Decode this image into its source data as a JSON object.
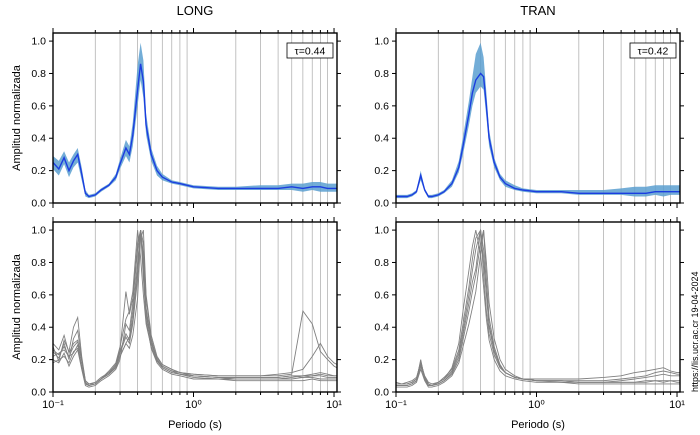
{
  "side_note": "https://lis.ucr.ac.cr 19-04-2024",
  "chart_data": [
    {
      "type": "line",
      "title": "LONG",
      "xlabel": "",
      "ylabel": "Amplitud normalizada",
      "xscale": "log",
      "xlim": [
        0.1,
        10.5
      ],
      "ylim": [
        0,
        1.05
      ],
      "yticks": [
        "0.0",
        "0.2",
        "0.4",
        "0.6",
        "0.8",
        "1.0"
      ],
      "annotation": "τ=0.44",
      "legend": "none",
      "grid": "vertical",
      "x": [
        0.1,
        0.11,
        0.12,
        0.13,
        0.14,
        0.15,
        0.16,
        0.17,
        0.18,
        0.2,
        0.22,
        0.25,
        0.28,
        0.3,
        0.33,
        0.35,
        0.37,
        0.4,
        0.42,
        0.44,
        0.46,
        0.5,
        0.55,
        0.6,
        0.7,
        0.8,
        1.0,
        1.5,
        2,
        3,
        4,
        5,
        6,
        7,
        8,
        9,
        10,
        10.5
      ],
      "series": [
        {
          "values": [
            0.25,
            0.21,
            0.28,
            0.2,
            0.26,
            0.3,
            0.18,
            0.06,
            0.04,
            0.05,
            0.08,
            0.11,
            0.16,
            0.24,
            0.34,
            0.3,
            0.42,
            0.7,
            0.86,
            0.75,
            0.48,
            0.3,
            0.2,
            0.16,
            0.13,
            0.12,
            0.1,
            0.09,
            0.09,
            0.09,
            0.09,
            0.1,
            0.09,
            0.1,
            0.1,
            0.09,
            0.09,
            0.09
          ],
          "lower": [
            0.21,
            0.17,
            0.24,
            0.16,
            0.22,
            0.25,
            0.14,
            0.04,
            0.03,
            0.04,
            0.07,
            0.1,
            0.14,
            0.21,
            0.29,
            0.25,
            0.35,
            0.6,
            0.76,
            0.65,
            0.42,
            0.26,
            0.17,
            0.14,
            0.12,
            0.11,
            0.09,
            0.08,
            0.08,
            0.08,
            0.08,
            0.08,
            0.07,
            0.08,
            0.07,
            0.07,
            0.07,
            0.07
          ],
          "upper": [
            0.29,
            0.26,
            0.32,
            0.25,
            0.3,
            0.34,
            0.22,
            0.08,
            0.05,
            0.06,
            0.09,
            0.12,
            0.18,
            0.27,
            0.39,
            0.35,
            0.5,
            0.85,
            0.99,
            0.88,
            0.55,
            0.34,
            0.23,
            0.18,
            0.14,
            0.13,
            0.11,
            0.1,
            0.1,
            0.11,
            0.11,
            0.12,
            0.12,
            0.13,
            0.13,
            0.12,
            0.12,
            0.12
          ]
        }
      ]
    },
    {
      "type": "line",
      "title": "TRAN",
      "xlabel": "",
      "ylabel": "",
      "xscale": "log",
      "xlim": [
        0.1,
        10.5
      ],
      "ylim": [
        0,
        1.05
      ],
      "yticks": [
        "0.0",
        "0.2",
        "0.4",
        "0.6",
        "0.8",
        "1.0"
      ],
      "annotation": "τ=0.42",
      "legend": "none",
      "grid": "vertical",
      "x": [
        0.1,
        0.11,
        0.12,
        0.13,
        0.14,
        0.15,
        0.16,
        0.17,
        0.18,
        0.2,
        0.22,
        0.25,
        0.28,
        0.3,
        0.33,
        0.35,
        0.37,
        0.4,
        0.42,
        0.44,
        0.46,
        0.5,
        0.55,
        0.6,
        0.7,
        0.8,
        1.0,
        1.5,
        2,
        3,
        4,
        5,
        6,
        7,
        8,
        9,
        10,
        10.5
      ],
      "series": [
        {
          "values": [
            0.04,
            0.04,
            0.04,
            0.05,
            0.07,
            0.17,
            0.08,
            0.04,
            0.04,
            0.05,
            0.07,
            0.12,
            0.22,
            0.35,
            0.55,
            0.68,
            0.76,
            0.8,
            0.78,
            0.6,
            0.4,
            0.25,
            0.16,
            0.12,
            0.09,
            0.08,
            0.07,
            0.07,
            0.06,
            0.06,
            0.06,
            0.06,
            0.06,
            0.07,
            0.07,
            0.07,
            0.07,
            0.07
          ],
          "lower": [
            0.03,
            0.03,
            0.03,
            0.04,
            0.06,
            0.14,
            0.07,
            0.03,
            0.03,
            0.04,
            0.06,
            0.1,
            0.19,
            0.3,
            0.48,
            0.6,
            0.68,
            0.72,
            0.7,
            0.53,
            0.35,
            0.22,
            0.14,
            0.1,
            0.08,
            0.07,
            0.06,
            0.06,
            0.05,
            0.05,
            0.05,
            0.04,
            0.04,
            0.05,
            0.04,
            0.05,
            0.05,
            0.05
          ],
          "upper": [
            0.05,
            0.05,
            0.05,
            0.06,
            0.08,
            0.2,
            0.09,
            0.05,
            0.05,
            0.06,
            0.08,
            0.14,
            0.26,
            0.41,
            0.63,
            0.78,
            0.92,
            0.99,
            0.9,
            0.68,
            0.45,
            0.28,
            0.18,
            0.14,
            0.11,
            0.09,
            0.08,
            0.08,
            0.08,
            0.08,
            0.09,
            0.1,
            0.1,
            0.11,
            0.11,
            0.11,
            0.11,
            0.11
          ]
        }
      ]
    },
    {
      "type": "line",
      "title": "",
      "xlabel": "Periodo (s)",
      "ylabel": "Amplitud normalizada",
      "xscale": "log",
      "xlim": [
        0.1,
        10.5
      ],
      "ylim": [
        0,
        1.05
      ],
      "xticks": [
        "10⁻¹",
        "10⁰",
        "10¹"
      ],
      "yticks": [
        "0.0",
        "0.2",
        "0.4",
        "0.6",
        "0.8",
        "1.0"
      ],
      "legend": "none",
      "grid": "vertical",
      "x": [
        0.1,
        0.11,
        0.12,
        0.13,
        0.14,
        0.15,
        0.16,
        0.17,
        0.18,
        0.2,
        0.22,
        0.25,
        0.28,
        0.3,
        0.33,
        0.35,
        0.37,
        0.4,
        0.42,
        0.44,
        0.46,
        0.5,
        0.55,
        0.6,
        0.7,
        0.8,
        1.0,
        1.5,
        2,
        3,
        4,
        5,
        6,
        7,
        8,
        9,
        10,
        10.5
      ],
      "series": [
        {
          "values": [
            0.25,
            0.21,
            0.3,
            0.2,
            0.33,
            0.38,
            0.2,
            0.06,
            0.04,
            0.05,
            0.08,
            0.11,
            0.16,
            0.24,
            0.34,
            0.3,
            0.42,
            0.7,
            1.0,
            0.75,
            0.48,
            0.3,
            0.2,
            0.16,
            0.13,
            0.12,
            0.1,
            0.09,
            0.09,
            0.09,
            0.09,
            0.1,
            0.09,
            0.1,
            0.1,
            0.09,
            0.09,
            0.09
          ]
        },
        {
          "values": [
            0.22,
            0.24,
            0.26,
            0.22,
            0.24,
            0.29,
            0.16,
            0.05,
            0.04,
            0.05,
            0.08,
            0.13,
            0.18,
            0.28,
            0.45,
            0.5,
            0.62,
            1.0,
            0.83,
            0.6,
            0.42,
            0.28,
            0.19,
            0.15,
            0.12,
            0.11,
            0.1,
            0.09,
            0.08,
            0.08,
            0.08,
            0.09,
            0.1,
            0.1,
            0.11,
            0.1,
            0.1,
            0.1
          ]
        },
        {
          "values": [
            0.28,
            0.19,
            0.32,
            0.25,
            0.4,
            0.46,
            0.22,
            0.07,
            0.05,
            0.06,
            0.09,
            0.12,
            0.15,
            0.22,
            0.3,
            0.27,
            0.35,
            0.58,
            0.95,
            1.0,
            0.6,
            0.35,
            0.22,
            0.17,
            0.14,
            0.12,
            0.11,
            0.1,
            0.1,
            0.1,
            0.11,
            0.12,
            0.14,
            0.22,
            0.3,
            0.22,
            0.18,
            0.17
          ]
        },
        {
          "values": [
            0.2,
            0.18,
            0.24,
            0.16,
            0.22,
            0.26,
            0.14,
            0.04,
            0.03,
            0.04,
            0.07,
            0.1,
            0.14,
            0.2,
            0.42,
            0.38,
            0.55,
            0.88,
            1.0,
            0.7,
            0.45,
            0.27,
            0.18,
            0.14,
            0.11,
            0.1,
            0.08,
            0.08,
            0.07,
            0.07,
            0.07,
            0.07,
            0.07,
            0.08,
            0.07,
            0.07,
            0.07,
            0.07
          ]
        },
        {
          "values": [
            0.3,
            0.26,
            0.35,
            0.24,
            0.3,
            0.32,
            0.2,
            0.07,
            0.05,
            0.05,
            0.08,
            0.12,
            0.17,
            0.26,
            0.62,
            0.48,
            0.58,
            0.92,
            1.0,
            0.85,
            0.52,
            0.31,
            0.21,
            0.17,
            0.14,
            0.12,
            0.11,
            0.1,
            0.1,
            0.1,
            0.1,
            0.11,
            0.5,
            0.42,
            0.25,
            0.2,
            0.16,
            0.15
          ]
        },
        {
          "values": [
            0.18,
            0.2,
            0.22,
            0.18,
            0.25,
            0.27,
            0.15,
            0.05,
            0.04,
            0.05,
            0.08,
            0.11,
            0.15,
            0.22,
            0.3,
            0.34,
            0.5,
            0.8,
            1.0,
            0.92,
            0.58,
            0.33,
            0.2,
            0.15,
            0.12,
            0.11,
            0.09,
            0.08,
            0.08,
            0.08,
            0.08,
            0.08,
            0.09,
            0.09,
            0.08,
            0.08,
            0.08,
            0.08
          ]
        },
        {
          "values": [
            0.26,
            0.23,
            0.28,
            0.22,
            0.28,
            0.31,
            0.19,
            0.06,
            0.04,
            0.05,
            0.08,
            0.12,
            0.17,
            0.25,
            0.36,
            0.32,
            0.45,
            0.75,
            1.0,
            0.8,
            0.5,
            0.3,
            0.2,
            0.16,
            0.13,
            0.11,
            0.1,
            0.09,
            0.09,
            0.09,
            0.09,
            0.1,
            0.1,
            0.11,
            0.12,
            0.11,
            0.1,
            0.1
          ]
        }
      ]
    },
    {
      "type": "line",
      "title": "",
      "xlabel": "Periodo (s)",
      "ylabel": "",
      "xscale": "log",
      "xlim": [
        0.1,
        10.5
      ],
      "ylim": [
        0,
        1.05
      ],
      "xticks": [
        "10⁻¹",
        "10⁰",
        "10¹"
      ],
      "yticks": [
        "0.0",
        "0.2",
        "0.4",
        "0.6",
        "0.8",
        "1.0"
      ],
      "legend": "none",
      "grid": "vertical",
      "x": [
        0.1,
        0.11,
        0.12,
        0.13,
        0.14,
        0.15,
        0.16,
        0.17,
        0.18,
        0.2,
        0.22,
        0.25,
        0.28,
        0.3,
        0.33,
        0.35,
        0.37,
        0.4,
        0.42,
        0.44,
        0.46,
        0.5,
        0.55,
        0.6,
        0.7,
        0.8,
        1.0,
        1.5,
        2,
        3,
        4,
        5,
        6,
        7,
        8,
        9,
        10,
        10.5
      ],
      "series": [
        {
          "values": [
            0.04,
            0.04,
            0.04,
            0.05,
            0.07,
            0.2,
            0.08,
            0.04,
            0.04,
            0.05,
            0.07,
            0.12,
            0.22,
            0.35,
            0.55,
            0.68,
            0.76,
            1.0,
            0.8,
            0.6,
            0.4,
            0.25,
            0.16,
            0.12,
            0.09,
            0.08,
            0.07,
            0.07,
            0.06,
            0.06,
            0.06,
            0.06,
            0.06,
            0.07,
            0.07,
            0.07,
            0.07,
            0.07
          ]
        },
        {
          "values": [
            0.05,
            0.05,
            0.05,
            0.06,
            0.08,
            0.17,
            0.09,
            0.05,
            0.04,
            0.06,
            0.08,
            0.15,
            0.3,
            0.5,
            0.75,
            0.9,
            1.0,
            0.85,
            0.65,
            0.45,
            0.32,
            0.2,
            0.13,
            0.1,
            0.08,
            0.07,
            0.06,
            0.06,
            0.06,
            0.06,
            0.07,
            0.08,
            0.09,
            0.1,
            0.11,
            0.1,
            0.1,
            0.1
          ]
        },
        {
          "values": [
            0.03,
            0.03,
            0.03,
            0.04,
            0.06,
            0.14,
            0.07,
            0.03,
            0.03,
            0.04,
            0.06,
            0.1,
            0.18,
            0.28,
            0.42,
            0.52,
            0.62,
            0.85,
            1.0,
            0.8,
            0.55,
            0.33,
            0.2,
            0.14,
            0.1,
            0.08,
            0.07,
            0.06,
            0.05,
            0.05,
            0.05,
            0.05,
            0.05,
            0.05,
            0.05,
            0.05,
            0.05,
            0.05
          ]
        },
        {
          "values": [
            0.06,
            0.05,
            0.06,
            0.07,
            0.09,
            0.18,
            0.1,
            0.06,
            0.05,
            0.06,
            0.09,
            0.14,
            0.26,
            0.42,
            0.65,
            0.82,
            0.95,
            1.0,
            0.72,
            0.5,
            0.36,
            0.23,
            0.15,
            0.12,
            0.09,
            0.08,
            0.08,
            0.08,
            0.08,
            0.09,
            0.1,
            0.12,
            0.13,
            0.14,
            0.15,
            0.13,
            0.12,
            0.12
          ]
        },
        {
          "values": [
            0.04,
            0.04,
            0.04,
            0.05,
            0.07,
            0.16,
            0.08,
            0.04,
            0.04,
            0.05,
            0.07,
            0.11,
            0.2,
            0.32,
            0.5,
            0.62,
            0.72,
            0.92,
            1.0,
            0.7,
            0.46,
            0.28,
            0.17,
            0.12,
            0.09,
            0.08,
            0.07,
            0.07,
            0.06,
            0.06,
            0.06,
            0.06,
            0.07,
            0.07,
            0.06,
            0.07,
            0.06,
            0.06
          ]
        },
        {
          "values": [
            0.05,
            0.05,
            0.05,
            0.06,
            0.08,
            0.19,
            0.09,
            0.05,
            0.04,
            0.06,
            0.08,
            0.13,
            0.24,
            0.38,
            0.6,
            0.75,
            0.88,
            1.0,
            0.88,
            0.62,
            0.42,
            0.26,
            0.16,
            0.12,
            0.09,
            0.08,
            0.07,
            0.07,
            0.07,
            0.07,
            0.08,
            0.09,
            0.1,
            0.12,
            0.13,
            0.12,
            0.11,
            0.11
          ]
        }
      ]
    }
  ],
  "style": {
    "band_color": "#5b9fd0",
    "mean_color": "#1b3de0",
    "trace_color": "#808080",
    "grid_color": "#b4b4b4"
  }
}
